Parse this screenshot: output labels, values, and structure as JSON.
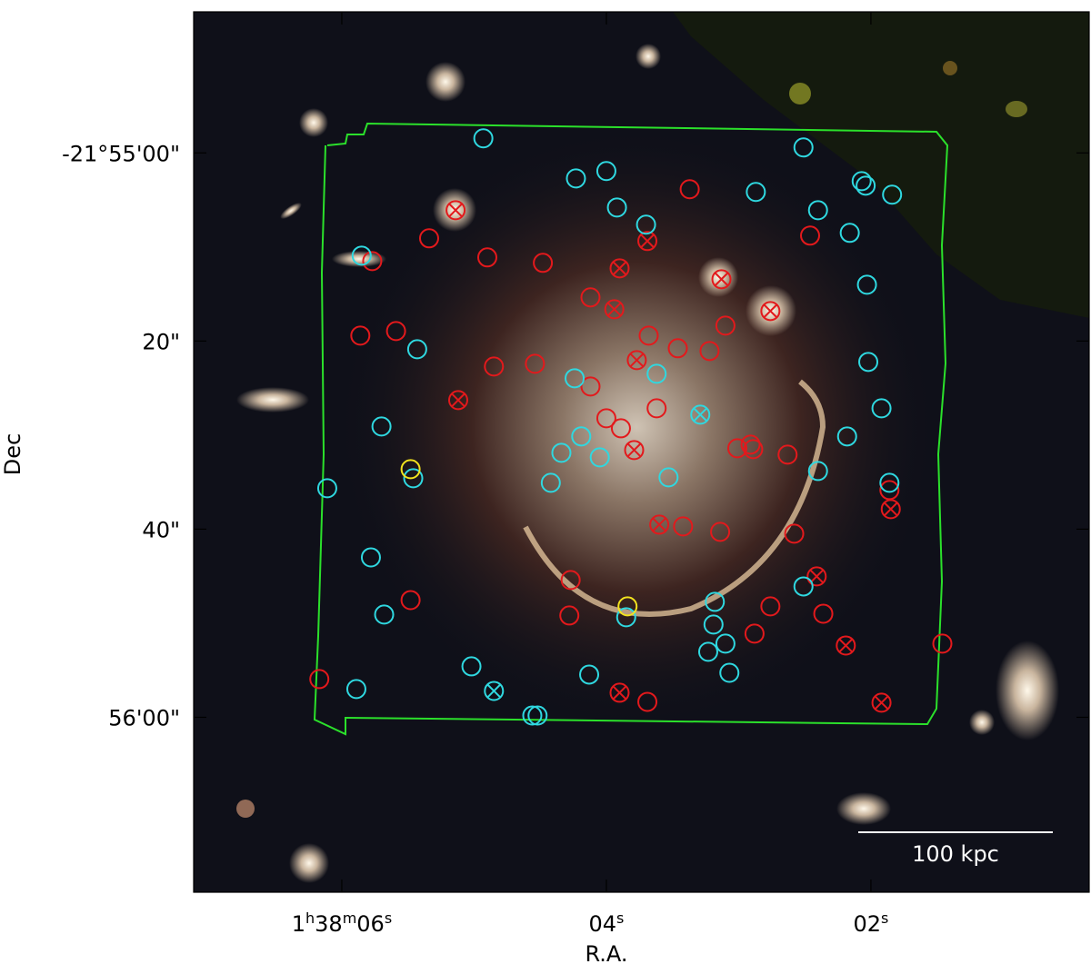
{
  "chart_data": {
    "type": "scatter",
    "xlabel": "R.A.",
    "ylabel": "Dec",
    "xlim": [
      7.12,
      0.35
    ],
    "ylim": [
      78.6,
      -15.0
    ],
    "xticks": [
      {
        "value": 6,
        "label": "1h38m06s"
      },
      {
        "value": 4,
        "label": "04s"
      },
      {
        "value": 2,
        "label": "02s"
      }
    ],
    "yticks": [
      {
        "value": 0,
        "label": "-21°55'00\""
      },
      {
        "value": 20,
        "label": "20\""
      },
      {
        "value": 40,
        "label": "40\""
      },
      {
        "value": 60,
        "label": "56'00\""
      }
    ],
    "scale_bar_label": "100 kpc",
    "series": [
      {
        "color": "#e3191c",
        "marker": "circle",
        "x": [
          3.37,
          5.34,
          4.9,
          4.48,
          4.12,
          2.46,
          5.86,
          5.59,
          3.1,
          3.68,
          3.46,
          3.22,
          4.85,
          4.54,
          4.12,
          4.0,
          3.89,
          3.62,
          3.01,
          2.91,
          2.89,
          2.63,
          1.86,
          3.42,
          3.14,
          2.58,
          4.27,
          5.48,
          4.28,
          2.76,
          2.36,
          2.88,
          3.69,
          1.46,
          6.17,
          5.77
        ],
        "y": [
          3.86,
          9.08,
          11.11,
          11.69,
          15.36,
          8.79,
          19.42,
          18.94,
          18.36,
          19.42,
          20.77,
          21.06,
          22.71,
          22.42,
          24.83,
          28.21,
          29.28,
          27.15,
          31.4,
          31.01,
          31.5,
          32.08,
          35.85,
          39.71,
          40.29,
          40.48,
          45.41,
          47.54,
          49.18,
          48.21,
          48.99,
          51.11,
          58.36,
          52.17,
          55.94,
          11.5
        ]
      },
      {
        "color": "#e3191c",
        "marker": "crossed",
        "x": [
          5.14,
          3.69,
          3.9,
          3.13,
          2.76,
          3.94,
          3.77,
          5.12,
          3.79,
          3.6,
          1.85,
          2.41,
          2.19,
          3.9,
          1.92
        ],
        "y": [
          6.09,
          9.37,
          12.27,
          13.43,
          16.81,
          16.62,
          22.03,
          26.28,
          31.59,
          39.52,
          37.87,
          45.02,
          52.37,
          57.39,
          58.45
        ]
      },
      {
        "color": "#2fd8e0",
        "marker": "circle",
        "x": [
          4.93,
          4.23,
          4.0,
          2.51,
          2.87,
          2.07,
          2.04,
          1.84,
          3.92,
          2.4,
          3.7,
          2.16,
          2.03,
          5.85,
          5.43,
          2.02,
          4.24,
          3.62,
          1.92,
          5.7,
          2.18,
          4.19,
          4.34,
          4.05,
          2.4,
          5.46,
          4.42,
          3.53,
          1.86,
          6.11,
          5.78,
          2.51,
          5.68,
          3.18,
          3.85,
          3.19,
          3.23,
          3.1,
          5.02,
          4.13,
          3.07,
          5.89,
          4.56,
          4.52
        ],
        "y": [
          -1.55,
          2.71,
          1.93,
          -0.58,
          4.15,
          3.0,
          3.48,
          4.44,
          5.8,
          6.09,
          7.63,
          8.5,
          14.01,
          10.92,
          20.87,
          22.22,
          23.96,
          23.48,
          27.15,
          29.08,
          30.14,
          30.14,
          31.88,
          32.37,
          33.82,
          34.59,
          35.07,
          34.49,
          35.07,
          35.65,
          43.0,
          46.09,
          49.08,
          47.73,
          49.37,
          50.14,
          53.04,
          52.17,
          54.59,
          55.46,
          55.27,
          57.0,
          59.81,
          59.81
        ]
      },
      {
        "color": "#2fd8e0",
        "marker": "crossed",
        "x": [
          3.29,
          4.85
        ],
        "y": [
          27.83,
          57.2
        ]
      },
      {
        "color": "#f2e21e",
        "marker": "circle",
        "x": [
          5.48,
          3.84
        ],
        "y": [
          33.62,
          48.21
        ]
      }
    ]
  }
}
